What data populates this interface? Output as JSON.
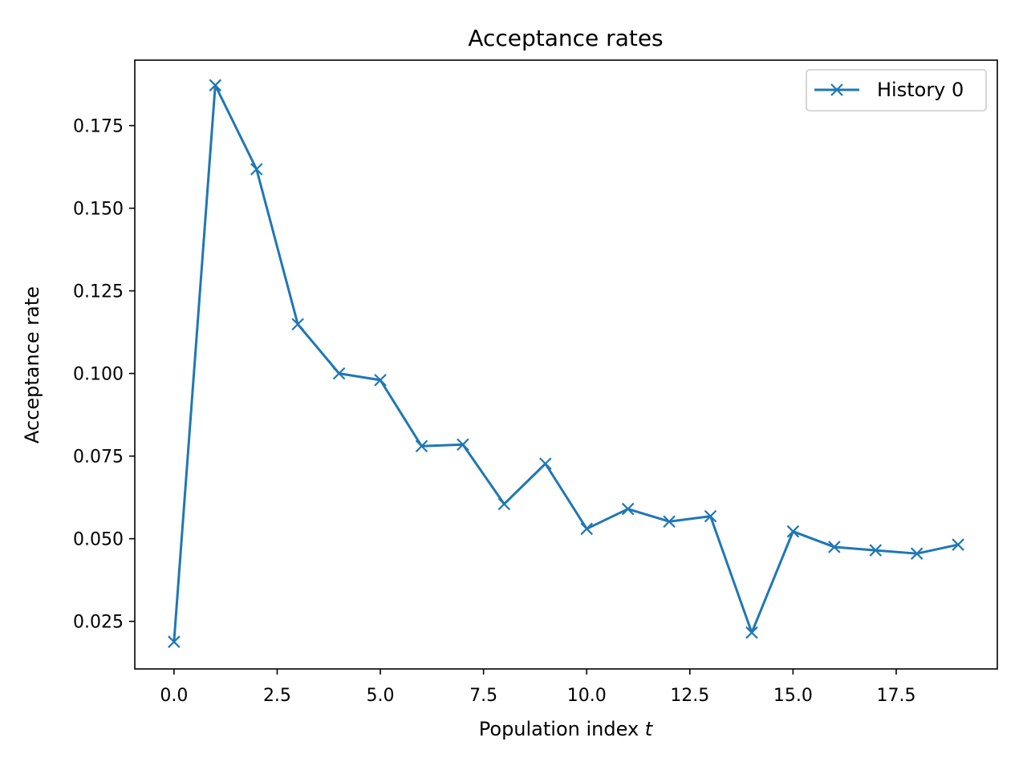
{
  "chart_data": {
    "type": "line",
    "title": "Acceptance rates",
    "xlabel": "Population index",
    "xlabel_var": "t",
    "ylabel": "Acceptance rate",
    "xlim": [
      -0.95,
      19.95
    ],
    "ylim": [
      0.0106,
      0.1948
    ],
    "x_ticks": [
      0.0,
      2.5,
      5.0,
      7.5,
      10.0,
      12.5,
      15.0,
      17.5
    ],
    "x_tick_labels": [
      "0.0",
      "2.5",
      "5.0",
      "7.5",
      "10.0",
      "12.5",
      "15.0",
      "17.5"
    ],
    "y_ticks": [
      0.025,
      0.05,
      0.075,
      0.1,
      0.125,
      0.15,
      0.175
    ],
    "y_tick_labels": [
      "0.025",
      "0.050",
      "0.075",
      "0.100",
      "0.125",
      "0.150",
      "0.175"
    ],
    "grid": false,
    "legend_position": "top-right",
    "marker": "x",
    "series": [
      {
        "name": "History 0",
        "color": "#1f77b4",
        "x": [
          0,
          1,
          2,
          3,
          4,
          5,
          6,
          7,
          8,
          9,
          10,
          11,
          12,
          13,
          14,
          15,
          16,
          17,
          18,
          19
        ],
        "y": [
          0.0188,
          0.1872,
          0.1618,
          0.1149,
          0.1,
          0.098,
          0.078,
          0.0785,
          0.0605,
          0.0727,
          0.053,
          0.059,
          0.0552,
          0.0568,
          0.0216,
          0.0522,
          0.0475,
          0.0465,
          0.0455,
          0.0482
        ]
      }
    ]
  }
}
